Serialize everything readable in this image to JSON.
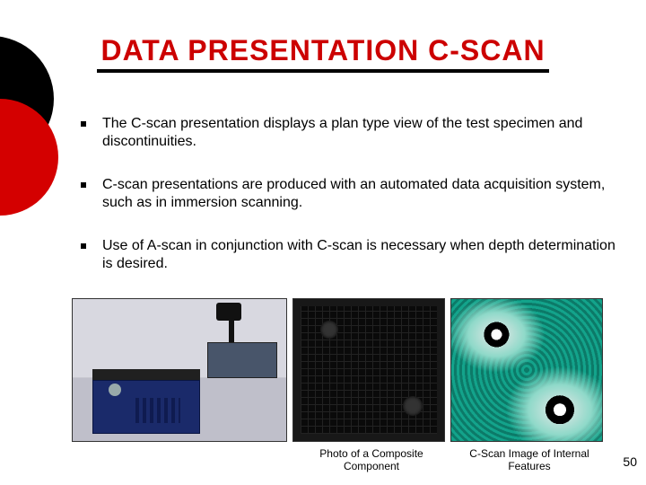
{
  "title": "DATA PRESENTATION C-SCAN",
  "title_color": "#cc0000",
  "underline_color": "#000000",
  "decor": {
    "black": "#000000",
    "red": "#d40000"
  },
  "bullets": [
    "The C-scan presentation displays a plan type view of the test specimen and discontinuities.",
    "C-scan presentations are produced with an automated data acquisition system, such as in immersion scanning.",
    "Use of A-scan in conjunction with C-scan is necessary when depth determination is desired."
  ],
  "captions": {
    "composite": "Photo of a Composite Component",
    "cscan": "C-Scan Image of Internal Features"
  },
  "page_number": "50",
  "body_fontsize": 16,
  "caption_fontsize": 12
}
